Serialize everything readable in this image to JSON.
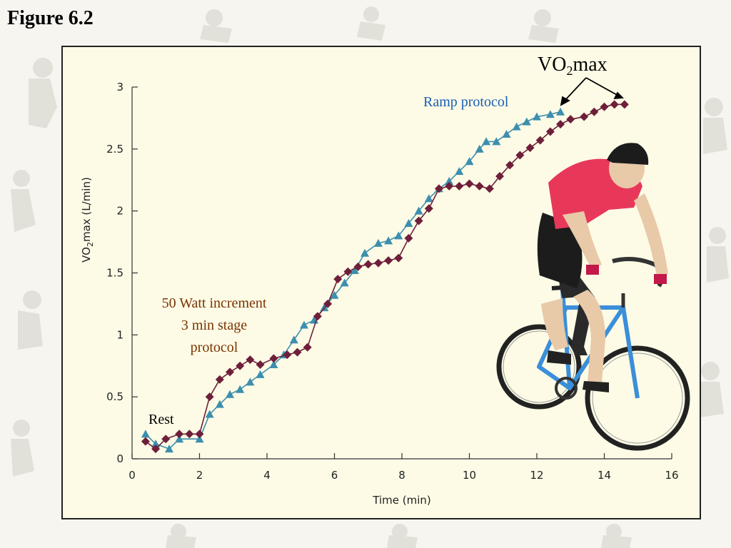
{
  "figure_title": "Figure 6.2",
  "chart_data": {
    "type": "line",
    "title": "",
    "xlabel": "Time (min)",
    "ylabel_main": "VO",
    "ylabel_sub": "2",
    "ylabel_rest": "max (L/min)",
    "xlim": [
      0,
      16
    ],
    "ylim": [
      0,
      3
    ],
    "x_ticks": [
      0,
      2,
      4,
      6,
      8,
      10,
      12,
      14,
      16
    ],
    "y_ticks": [
      {
        "value": 0,
        "label": "0"
      },
      {
        "value": 0.5,
        "label": "0.5"
      },
      {
        "value": 1,
        "label": "1"
      },
      {
        "value": 1.5,
        "label": "1.5"
      },
      {
        "value": 2,
        "label": "2"
      },
      {
        "value": 2.5,
        "label": "2.5"
      },
      {
        "value": 3,
        "label": "3"
      }
    ],
    "grid": false,
    "series": [
      {
        "id": "ramp",
        "marker": "triangle",
        "color": "#3d8fae",
        "points": [
          [
            0.4,
            0.2
          ],
          [
            0.7,
            0.12
          ],
          [
            1.1,
            0.08
          ],
          [
            1.4,
            0.16
          ],
          [
            2.0,
            0.16
          ],
          [
            2.3,
            0.36
          ],
          [
            2.6,
            0.44
          ],
          [
            2.9,
            0.52
          ],
          [
            3.2,
            0.56
          ],
          [
            3.5,
            0.62
          ],
          [
            3.8,
            0.68
          ],
          [
            4.2,
            0.76
          ],
          [
            4.5,
            0.84
          ],
          [
            4.8,
            0.96
          ],
          [
            5.1,
            1.08
          ],
          [
            5.4,
            1.12
          ],
          [
            5.7,
            1.22
          ],
          [
            6.0,
            1.32
          ],
          [
            6.3,
            1.42
          ],
          [
            6.6,
            1.52
          ],
          [
            6.9,
            1.66
          ],
          [
            7.3,
            1.74
          ],
          [
            7.6,
            1.76
          ],
          [
            7.9,
            1.8
          ],
          [
            8.2,
            1.9
          ],
          [
            8.5,
            2.0
          ],
          [
            8.8,
            2.1
          ],
          [
            9.1,
            2.18
          ],
          [
            9.4,
            2.24
          ],
          [
            9.7,
            2.32
          ],
          [
            10.0,
            2.4
          ],
          [
            10.3,
            2.5
          ],
          [
            10.5,
            2.56
          ],
          [
            10.8,
            2.56
          ],
          [
            11.1,
            2.62
          ],
          [
            11.4,
            2.68
          ],
          [
            11.7,
            2.72
          ],
          [
            12.0,
            2.76
          ],
          [
            12.4,
            2.78
          ],
          [
            12.7,
            2.8
          ]
        ]
      },
      {
        "id": "stage",
        "marker": "diamond",
        "color": "#6e1f3a",
        "points": [
          [
            0.4,
            0.14
          ],
          [
            0.7,
            0.08
          ],
          [
            1.0,
            0.16
          ],
          [
            1.4,
            0.2
          ],
          [
            1.7,
            0.2
          ],
          [
            2.0,
            0.2
          ],
          [
            2.3,
            0.5
          ],
          [
            2.6,
            0.64
          ],
          [
            2.9,
            0.7
          ],
          [
            3.2,
            0.75
          ],
          [
            3.5,
            0.8
          ],
          [
            3.8,
            0.76
          ],
          [
            4.2,
            0.81
          ],
          [
            4.6,
            0.84
          ],
          [
            4.9,
            0.86
          ],
          [
            5.2,
            0.9
          ],
          [
            5.5,
            1.15
          ],
          [
            5.8,
            1.25
          ],
          [
            6.1,
            1.45
          ],
          [
            6.4,
            1.51
          ],
          [
            6.7,
            1.55
          ],
          [
            7.0,
            1.57
          ],
          [
            7.3,
            1.58
          ],
          [
            7.6,
            1.6
          ],
          [
            7.9,
            1.62
          ],
          [
            8.2,
            1.78
          ],
          [
            8.5,
            1.92
          ],
          [
            8.8,
            2.02
          ],
          [
            9.1,
            2.18
          ],
          [
            9.4,
            2.2
          ],
          [
            9.7,
            2.2
          ],
          [
            10.0,
            2.22
          ],
          [
            10.3,
            2.2
          ],
          [
            10.6,
            2.18
          ],
          [
            10.9,
            2.28
          ],
          [
            11.2,
            2.37
          ],
          [
            11.5,
            2.45
          ],
          [
            11.8,
            2.51
          ],
          [
            12.1,
            2.57
          ],
          [
            12.4,
            2.64
          ],
          [
            12.7,
            2.7
          ],
          [
            13.0,
            2.74
          ],
          [
            13.4,
            2.76
          ],
          [
            13.7,
            2.8
          ],
          [
            14.0,
            2.84
          ],
          [
            14.3,
            2.86
          ],
          [
            14.6,
            2.86
          ]
        ]
      }
    ],
    "annotations": {
      "vo2max_main": "VO",
      "vo2max_sub": "2",
      "vo2max_rest": "max",
      "ramp_label": "Ramp protocol",
      "ramp_color": "#1a5fb4",
      "stage_line1": "50 Watt increment",
      "stage_line2": "3 min stage",
      "stage_line3": "protocol",
      "stage_color": "#7a3300",
      "rest_label": "Rest"
    }
  }
}
